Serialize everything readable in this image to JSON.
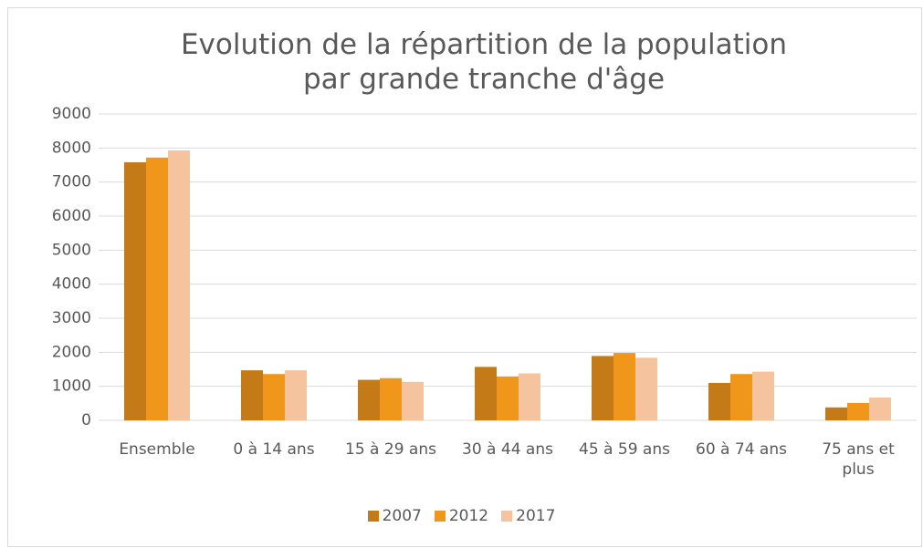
{
  "chart_data": {
    "type": "bar",
    "title": "Evolution de la répartition de la population par grande tranche d'âge",
    "categories": [
      "Ensemble",
      "0 à 14 ans",
      "15 à 29 ans",
      "30 à 44 ans",
      "45 à 59 ans",
      "60 à 74 ans",
      "75 ans et plus"
    ],
    "series": [
      {
        "name": "2007",
        "color": "#c47a17",
        "values": [
          7580,
          1470,
          1190,
          1570,
          1890,
          1100,
          380
        ]
      },
      {
        "name": "2012",
        "color": "#f0961a",
        "values": [
          7720,
          1360,
          1240,
          1290,
          1980,
          1360,
          510
        ]
      },
      {
        "name": "2017",
        "color": "#f5c39e",
        "values": [
          7930,
          1470,
          1130,
          1380,
          1840,
          1430,
          670
        ]
      }
    ],
    "ylim": [
      0,
      9000
    ],
    "yticks": [
      0,
      1000,
      2000,
      3000,
      4000,
      5000,
      6000,
      7000,
      8000,
      9000
    ],
    "grid": true,
    "legend": "bottom"
  }
}
